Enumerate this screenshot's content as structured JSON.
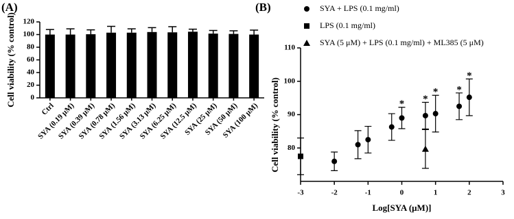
{
  "chart_data": [
    {
      "type": "bar",
      "panel": "(A)",
      "ylabel": "Cell viability (% control)",
      "categories": [
        "Ctrl",
        "SYA (0.19 μM)",
        "SYA (0.39 μM)",
        "SYA (0.78 μM)",
        "SYA (1.56 μM)",
        "SYA (3.13 μM)",
        "SYA (6.25 μM)",
        "SYA (12.5 μM)",
        "SYA (25 μM)",
        "SYA (50 μM)",
        "SYA (100 μM)"
      ],
      "values": [
        100,
        100,
        100.5,
        103,
        103,
        104,
        103.5,
        104.5,
        101.5,
        101,
        100
      ],
      "errors": [
        8,
        9,
        7,
        10,
        6,
        7,
        9,
        4,
        5,
        5,
        7
      ],
      "color": "#000000",
      "ylim": [
        0,
        120
      ],
      "yticks": [
        0,
        20,
        40,
        60,
        80,
        100,
        120
      ]
    },
    {
      "type": "scatter",
      "panel": "(B)",
      "xlabel": "Log[SYA (μM)]",
      "ylabel": "Cell viability (% control)",
      "xlim": [
        -3,
        3
      ],
      "xticks": [
        -3,
        -2,
        -1,
        0,
        1,
        2,
        3
      ],
      "ylim": [
        70,
        110
      ],
      "yticks": [
        80,
        90,
        100,
        110
      ],
      "series": [
        {
          "name": "SYA + LPS (0.1 mg/ml)",
          "marker": "circle",
          "color": "#000000",
          "x": [
            -2,
            -1.3,
            -1,
            -0.3,
            0,
            0.7,
            1,
            1.7,
            2
          ],
          "values": [
            76,
            81,
            82.5,
            86.3,
            89,
            89.7,
            90.3,
            92.5,
            95.2
          ],
          "errors": [
            2.8,
            4.2,
            4,
            4,
            3.2,
            4,
            5.5,
            4,
            5.5
          ]
        },
        {
          "name": "LPS  (0.1 mg/ml)",
          "marker": "square",
          "color": "#000000",
          "x": [
            -3
          ],
          "values": [
            77.5
          ],
          "errors": [
            5.5
          ]
        },
        {
          "name": "SYA  (5 μM) + LPS (0.1 mg/ml) + ML385 (5 μM)",
          "marker": "triangle",
          "color": "#000000",
          "x": [
            0.7
          ],
          "values": [
            79.7
          ],
          "errors": [
            5.8
          ]
        }
      ],
      "annotations": [
        {
          "x": 0,
          "text": "*"
        },
        {
          "x": 0.7,
          "text": "*"
        },
        {
          "x": 1,
          "text": "*"
        },
        {
          "x": 1.7,
          "text": "*"
        },
        {
          "x": 2,
          "text": "*"
        }
      ]
    }
  ]
}
